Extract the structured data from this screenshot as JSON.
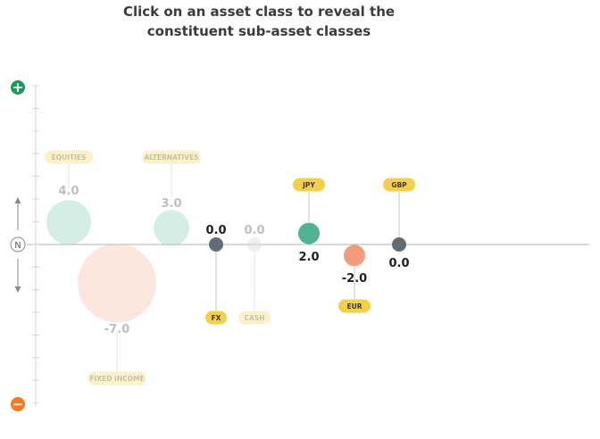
{
  "header": {
    "line1": "Click on an asset class to reveal the",
    "line2": "constituent sub-asset classes"
  },
  "scale": {
    "plus_symbol": "+",
    "neutral_label": "N",
    "minus_symbol": "−",
    "plus_color": "#1a9b5a",
    "minus_color": "#f47a22"
  },
  "chart_data": {
    "type": "scatter",
    "title": "",
    "ylabel": "",
    "y_range": [
      -7,
      7
    ],
    "points": [
      {
        "id": "equities",
        "label": "EQUITIES",
        "value": 4.0,
        "value_text": "4.0",
        "color": "#9fd9c8",
        "faded": true,
        "pill_color": "#f7e6a0"
      },
      {
        "id": "fixed-income",
        "label": "FIXED INCOME",
        "value": -7.0,
        "value_text": "-7.0",
        "color": "#f9c9b5",
        "faded": true,
        "pill_color": "#f7e6a0"
      },
      {
        "id": "alternatives",
        "label": "ALTERNATIVES",
        "value": 3.0,
        "value_text": "3.0",
        "color": "#9fd9c8",
        "faded": true,
        "pill_color": "#f7e6a0"
      },
      {
        "id": "fx",
        "label": "FX",
        "value": 0.0,
        "value_text": "0.0",
        "color": "#636c74",
        "faded": false,
        "pill_color": "#f4cf4a"
      },
      {
        "id": "cash",
        "label": "CASH",
        "value": 0.0,
        "value_text": "0.0",
        "color": "#d8dadc",
        "faded": true,
        "pill_color": "#f7e6a0"
      },
      {
        "id": "jpy",
        "label": "JPY",
        "value": 2.0,
        "value_text": "2.0",
        "color": "#52b394",
        "faded": false,
        "pill_color": "#f4cf4a"
      },
      {
        "id": "eur",
        "label": "EUR",
        "value": -2.0,
        "value_text": "-2.0",
        "color": "#f29c7c",
        "faded": false,
        "pill_color": "#f4cf4a"
      },
      {
        "id": "gbp",
        "label": "GBP",
        "value": 0.0,
        "value_text": "0.0",
        "color": "#636c74",
        "faded": false,
        "pill_color": "#f4cf4a"
      }
    ]
  }
}
